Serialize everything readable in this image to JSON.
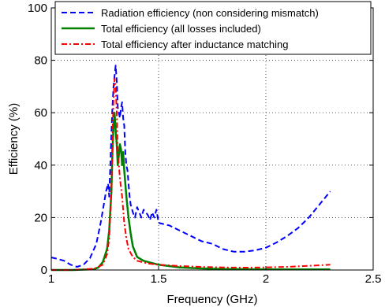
{
  "chart_data": {
    "type": "line",
    "xlabel": "Frequency (GHz)",
    "ylabel": "Efficiency (%)",
    "xlim": [
      1,
      2.5
    ],
    "ylim": [
      0,
      100
    ],
    "x_ticks": [
      1,
      1.5,
      2,
      2.5
    ],
    "x_tick_labels": [
      "1",
      "1.5",
      "2",
      "2.5"
    ],
    "y_ticks": [
      0,
      20,
      40,
      60,
      80,
      100
    ],
    "y_tick_labels": [
      "0",
      "20",
      "40",
      "60",
      "80",
      "100"
    ],
    "grid": true,
    "legend_position": "top",
    "series": [
      {
        "name": "Radiation efficiency (non considering mismatch)",
        "color": "#0000ff",
        "style": "dashed",
        "points": [
          [
            1.0,
            4.8
          ],
          [
            1.03,
            4.2
          ],
          [
            1.06,
            3.5
          ],
          [
            1.09,
            2.0
          ],
          [
            1.12,
            1.2
          ],
          [
            1.15,
            2.0
          ],
          [
            1.18,
            4.5
          ],
          [
            1.21,
            10
          ],
          [
            1.23,
            18
          ],
          [
            1.245,
            25
          ],
          [
            1.255,
            30
          ],
          [
            1.265,
            33
          ],
          [
            1.27,
            28
          ],
          [
            1.275,
            40
          ],
          [
            1.28,
            52
          ],
          [
            1.285,
            62
          ],
          [
            1.29,
            70
          ],
          [
            1.295,
            74
          ],
          [
            1.3,
            78
          ],
          [
            1.305,
            72
          ],
          [
            1.31,
            62
          ],
          [
            1.315,
            60
          ],
          [
            1.32,
            58
          ],
          [
            1.325,
            62
          ],
          [
            1.33,
            64
          ],
          [
            1.335,
            58
          ],
          [
            1.34,
            55
          ],
          [
            1.345,
            45
          ],
          [
            1.35,
            40
          ],
          [
            1.355,
            38
          ],
          [
            1.36,
            33
          ],
          [
            1.365,
            28
          ],
          [
            1.37,
            25
          ],
          [
            1.38,
            22
          ],
          [
            1.39,
            20
          ],
          [
            1.4,
            24
          ],
          [
            1.41,
            22
          ],
          [
            1.42,
            20
          ],
          [
            1.43,
            23
          ],
          [
            1.44,
            22
          ],
          [
            1.45,
            21
          ],
          [
            1.46,
            19
          ],
          [
            1.47,
            22
          ],
          [
            1.48,
            20
          ],
          [
            1.49,
            23
          ],
          [
            1.5,
            18
          ],
          [
            1.55,
            17
          ],
          [
            1.6,
            15
          ],
          [
            1.65,
            13
          ],
          [
            1.7,
            11
          ],
          [
            1.75,
            10
          ],
          [
            1.8,
            8
          ],
          [
            1.85,
            7
          ],
          [
            1.9,
            7
          ],
          [
            1.95,
            7.5
          ],
          [
            2.0,
            8.5
          ],
          [
            2.05,
            10.5
          ],
          [
            2.1,
            13
          ],
          [
            2.15,
            16
          ],
          [
            2.2,
            20
          ],
          [
            2.25,
            25
          ],
          [
            2.28,
            28
          ],
          [
            2.3,
            30
          ]
        ]
      },
      {
        "name": "Total efficiency (all losses included)",
        "color": "#008000",
        "style": "solid",
        "points": [
          [
            1.0,
            0
          ],
          [
            1.1,
            0
          ],
          [
            1.2,
            0.3
          ],
          [
            1.22,
            1
          ],
          [
            1.24,
            3
          ],
          [
            1.26,
            8
          ],
          [
            1.27,
            15
          ],
          [
            1.28,
            30
          ],
          [
            1.285,
            45
          ],
          [
            1.29,
            55
          ],
          [
            1.295,
            60
          ],
          [
            1.3,
            53
          ],
          [
            1.305,
            48
          ],
          [
            1.31,
            40
          ],
          [
            1.315,
            44
          ],
          [
            1.32,
            48
          ],
          [
            1.325,
            46
          ],
          [
            1.33,
            40
          ],
          [
            1.335,
            45
          ],
          [
            1.34,
            38
          ],
          [
            1.35,
            28
          ],
          [
            1.36,
            20
          ],
          [
            1.37,
            14
          ],
          [
            1.38,
            9
          ],
          [
            1.4,
            5
          ],
          [
            1.43,
            3.5
          ],
          [
            1.5,
            2
          ],
          [
            1.6,
            1
          ],
          [
            1.7,
            0.6
          ],
          [
            1.8,
            0.4
          ],
          [
            1.9,
            0.3
          ],
          [
            2.0,
            0.2
          ],
          [
            2.1,
            0.2
          ],
          [
            2.2,
            0.2
          ],
          [
            2.3,
            0.2
          ]
        ]
      },
      {
        "name": "Total efficiency after inductance matching",
        "color": "#ff0000",
        "style": "dashdot",
        "points": [
          [
            1.0,
            0
          ],
          [
            1.1,
            0
          ],
          [
            1.2,
            0.5
          ],
          [
            1.24,
            2
          ],
          [
            1.26,
            6
          ],
          [
            1.27,
            12
          ],
          [
            1.28,
            30
          ],
          [
            1.285,
            50
          ],
          [
            1.29,
            65
          ],
          [
            1.295,
            73
          ],
          [
            1.3,
            70
          ],
          [
            1.305,
            60
          ],
          [
            1.31,
            45
          ],
          [
            1.32,
            35
          ],
          [
            1.33,
            28
          ],
          [
            1.34,
            18
          ],
          [
            1.35,
            12
          ],
          [
            1.36,
            8
          ],
          [
            1.38,
            5
          ],
          [
            1.4,
            3.5
          ],
          [
            1.45,
            2.5
          ],
          [
            1.5,
            2
          ],
          [
            1.6,
            1.5
          ],
          [
            1.7,
            1.2
          ],
          [
            1.8,
            1
          ],
          [
            1.9,
            0.9
          ],
          [
            2.0,
            1
          ],
          [
            2.1,
            1.2
          ],
          [
            2.2,
            1.6
          ],
          [
            2.3,
            2
          ]
        ]
      }
    ]
  }
}
